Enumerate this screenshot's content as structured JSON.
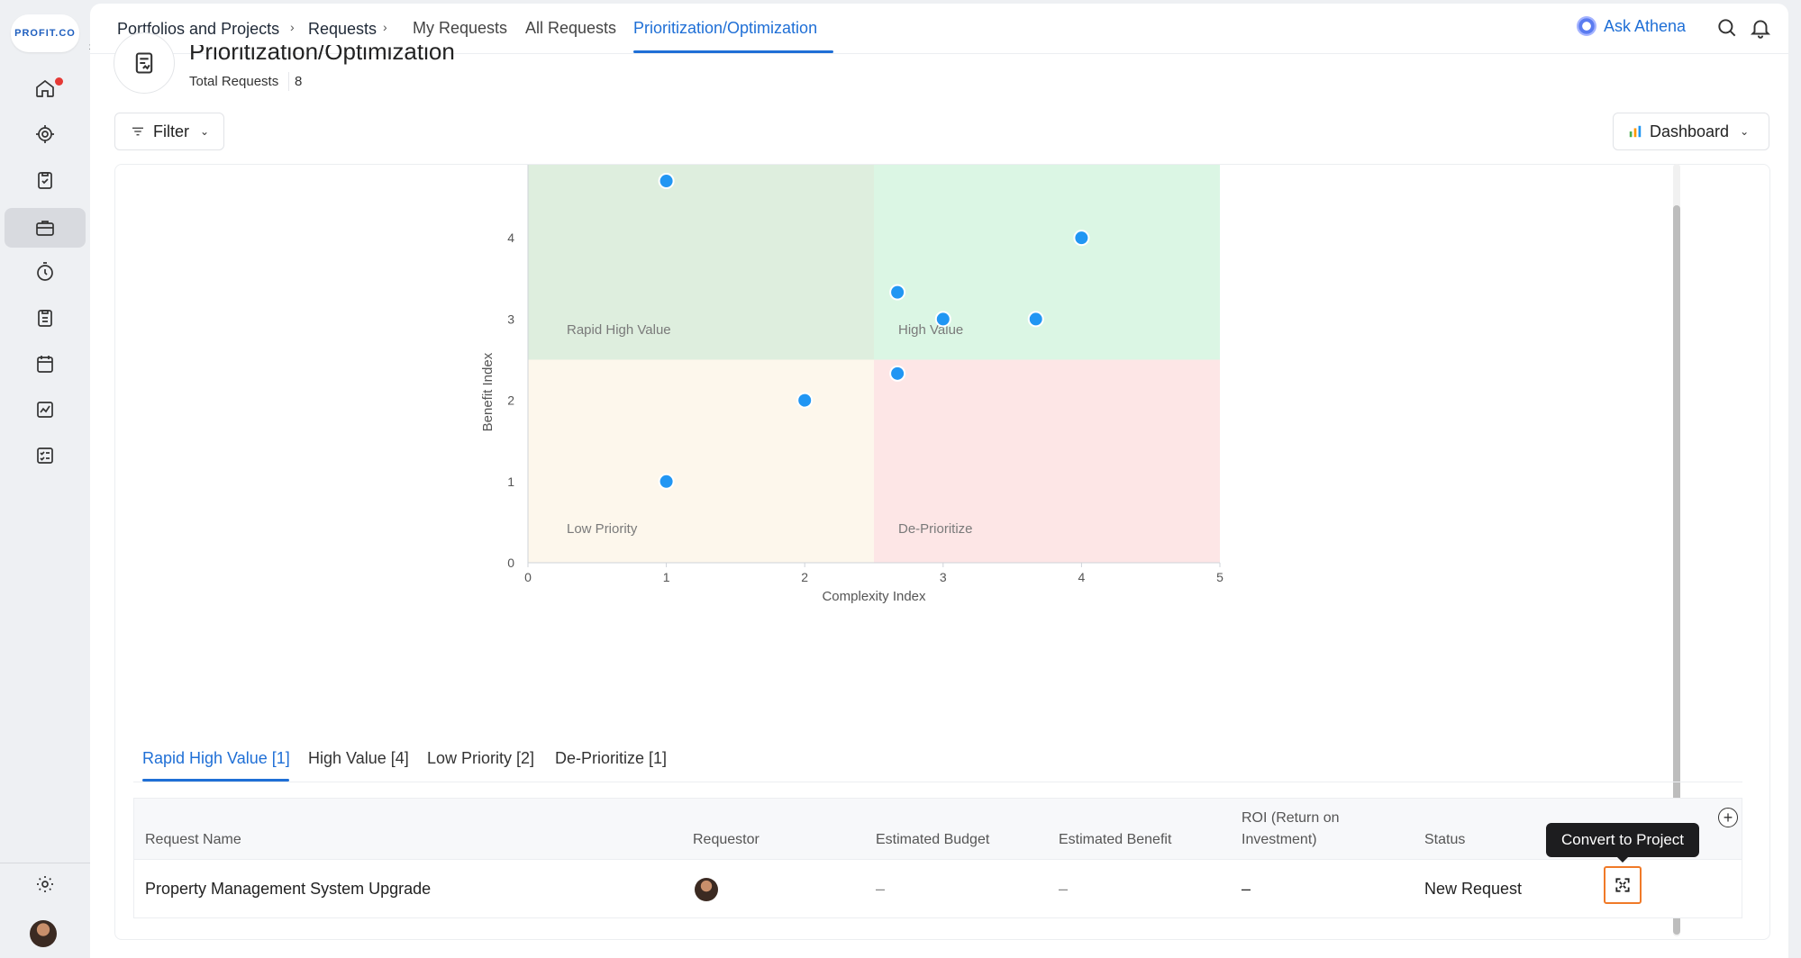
{
  "app": {
    "logo_text": "PROFIT.CO"
  },
  "breadcrumb": {
    "items": [
      "Portfolios and Projects",
      "Requests"
    ],
    "sep": "›"
  },
  "top_tabs": [
    {
      "label": "My Requests",
      "active": false
    },
    {
      "label": "All Requests",
      "active": false
    },
    {
      "label": "Prioritization/Optimization",
      "active": true
    }
  ],
  "header_actions": {
    "ask_label": "Ask Athena",
    "search_icon": "search-icon",
    "bell_icon": "bell-icon"
  },
  "page": {
    "title": "Prioritization/Optimization",
    "total_label": "Total Requests",
    "total_count": "8"
  },
  "toolbar": {
    "filter_label": "Filter",
    "view_label": "Dashboard"
  },
  "sidebar": {
    "items": [
      {
        "name": "home-icon",
        "active": false,
        "badge": true
      },
      {
        "name": "target-icon",
        "active": false
      },
      {
        "name": "clipboard-check-icon",
        "active": false
      },
      {
        "name": "briefcase-icon",
        "active": true
      },
      {
        "name": "timer-icon",
        "active": false
      },
      {
        "name": "clipboard-list-icon",
        "active": false
      },
      {
        "name": "calendar-icon",
        "active": false
      },
      {
        "name": "chart-line-icon",
        "active": false
      },
      {
        "name": "checklist-icon",
        "active": false
      }
    ],
    "settings_icon": "gear-icon"
  },
  "chart_data": {
    "type": "scatter",
    "xlabel": "Complexity Index",
    "ylabel": "Benefit Index",
    "xlim": [
      0,
      5
    ],
    "ylim": [
      0,
      4.9
    ],
    "xticks": [
      0,
      1,
      2,
      3,
      4,
      5
    ],
    "yticks": [
      0,
      1,
      2,
      3,
      4
    ],
    "quadrant_split": {
      "x": 2.5,
      "y": 2.5
    },
    "quadrants": [
      {
        "label": "Rapid High Value",
        "color": "#deeede"
      },
      {
        "label": "High Value",
        "color": "#dbf6e4"
      },
      {
        "label": "Low Priority",
        "color": "#fdf7ec"
      },
      {
        "label": "De-Prioritize",
        "color": "#fde6e6"
      }
    ],
    "point_color": "#2196f3",
    "points": [
      {
        "x": 1.0,
        "y": 4.7
      },
      {
        "x": 4.0,
        "y": 4.0
      },
      {
        "x": 2.67,
        "y": 3.33
      },
      {
        "x": 3.0,
        "y": 3.0
      },
      {
        "x": 3.67,
        "y": 3.0
      },
      {
        "x": 2.67,
        "y": 2.33
      },
      {
        "x": 2.0,
        "y": 2.0
      },
      {
        "x": 1.0,
        "y": 1.0
      }
    ],
    "grid": false
  },
  "quadrant_tabs": [
    {
      "label": "Rapid High Value [1]",
      "active": true
    },
    {
      "label": "High Value [4]",
      "active": false
    },
    {
      "label": "Low Priority [2]",
      "active": false
    },
    {
      "label": "De-Prioritize [1]",
      "active": false
    }
  ],
  "table": {
    "columns": [
      "Request Name",
      "Requestor",
      "Estimated Budget",
      "Estimated Benefit",
      "ROI (Return on Investment)",
      "Status"
    ],
    "rows": [
      {
        "name": "Property Management System Upgrade",
        "budget": "–",
        "benefit": "–",
        "roi": "–",
        "status": "New Request"
      }
    ],
    "tooltip": "Convert to Project"
  }
}
